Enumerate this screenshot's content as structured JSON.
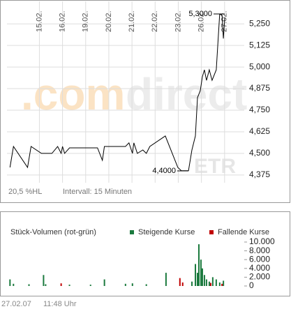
{
  "chart_data": [
    {
      "type": "line",
      "x": [
        -1.27,
        -1.12,
        -0.51,
        -0.36,
        0.09,
        0.54,
        0.79,
        0.94,
        1.0,
        1.09,
        1.3,
        1.6,
        2.21,
        2.51,
        2.72,
        2.81,
        3.72,
        3.87,
        4.02,
        4.08,
        4.23,
        4.47,
        4.62,
        4.77,
        5.44,
        5.98,
        6.13,
        6.44,
        6.59,
        6.74,
        6.83,
        6.95,
        7.04,
        7.13,
        7.22,
        7.34,
        7.46,
        7.64,
        7.79,
        7.89,
        7.95,
        8.01
      ],
      "series": [
        {
          "color": "#000000",
          "values": [
            4.419,
            4.54,
            4.419,
            4.54,
            4.5,
            4.5,
            4.54,
            4.5,
            4.54,
            4.5,
            4.532,
            4.532,
            4.532,
            4.532,
            4.46,
            4.54,
            4.54,
            4.561,
            4.5,
            4.561,
            4.5,
            4.52,
            4.5,
            4.54,
            4.601,
            4.419,
            4.4,
            4.4,
            4.52,
            4.601,
            4.823,
            4.863,
            4.944,
            4.984,
            4.923,
            4.984,
            4.923,
            4.984,
            5.306,
            5.3,
            5.165,
            5.286
          ]
        }
      ],
      "xlim": [
        -1.4,
        8.85
      ],
      "xticks": [
        {
          "value": 0,
          "label": "15.02."
        },
        {
          "value": 1,
          "label": "16.02."
        },
        {
          "value": 2,
          "label": "19.02."
        },
        {
          "value": 3,
          "label": "20.02."
        },
        {
          "value": 4,
          "label": "21.02."
        },
        {
          "value": 5,
          "label": "22.02."
        },
        {
          "value": 6,
          "label": "23.02."
        },
        {
          "value": 7,
          "label": "26.02."
        },
        {
          "value": 8,
          "label": "27.02."
        }
      ],
      "ylim": [
        4.33,
        5.38
      ],
      "yticks": [
        {
          "value": 4.375,
          "label": "4,375"
        },
        {
          "value": 4.5,
          "label": "4,500"
        },
        {
          "value": 4.625,
          "label": "4,625"
        },
        {
          "value": 4.75,
          "label": "4,750"
        },
        {
          "value": 4.875,
          "label": "4,875"
        },
        {
          "value": 5.0,
          "label": "5,000"
        },
        {
          "value": 5.125,
          "label": "5,125"
        },
        {
          "value": 5.25,
          "label": "5,250"
        }
      ],
      "grid": true,
      "annotations": [
        "5,3000",
        "4,4000"
      ],
      "watermark": [
        ".com",
        "direct",
        "ETR"
      ],
      "range_label": "20,5 %HL",
      "interval_label": "Intervall: 15 Minuten"
    },
    {
      "type": "bar",
      "title": "Stück-Volumen (rot-grün)",
      "series": [
        {
          "name": "Steigende Kurse",
          "color": "#1b7a3e",
          "x": [
            -1.27,
            -1.12,
            -0.45,
            0.18,
            0.27,
            1.3,
            2.21,
            2.81,
            3.72,
            4.02,
            4.62,
            5.47,
            6.59,
            6.74,
            6.83,
            6.89,
            6.98,
            7.04,
            7.13,
            7.22,
            7.34,
            7.49,
            7.64,
            7.79,
            7.95
          ],
          "values": [
            1500,
            500,
            400,
            2500,
            400,
            300,
            300,
            1500,
            500,
            600,
            400,
            3000,
            1000,
            5000,
            3000,
            9500,
            6000,
            4000,
            2500,
            1500,
            1000,
            2000,
            1500,
            800,
            1200
          ]
        },
        {
          "name": "Fallende Kurse",
          "color": "#c00000",
          "x": [
            0.94,
            6.07,
            6.19,
            7.4,
            7.89
          ],
          "values": [
            600,
            1800,
            800,
            700,
            500
          ]
        }
      ],
      "xlim": [
        -1.4,
        8.85
      ],
      "ylim": [
        0,
        10000
      ],
      "yticks": [
        0,
        {
          "value": 2000,
          "label": "2.000"
        },
        {
          "value": 4000,
          "label": "4.000"
        },
        {
          "value": 6000,
          "label": "6.000"
        },
        {
          "value": 8000,
          "label": "8.000"
        },
        {
          "value": 10000,
          "label": "10.000"
        }
      ]
    }
  ],
  "footer": {
    "date": "27.02.07",
    "time": "11:48 Uhr"
  }
}
